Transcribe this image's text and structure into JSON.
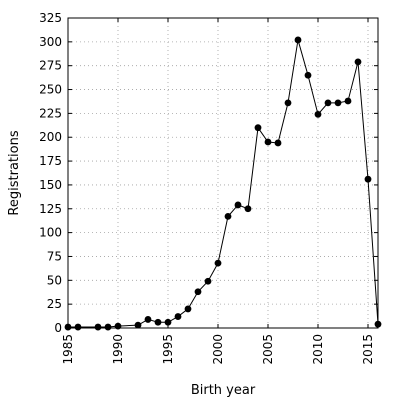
{
  "chart_data": {
    "type": "line",
    "title": "",
    "xlabel": "Birth year",
    "ylabel": "Registrations",
    "xlim": [
      1985,
      2016
    ],
    "ylim": [
      0,
      325
    ],
    "xticks": [
      1985,
      1990,
      1995,
      2000,
      2005,
      2010,
      2015
    ],
    "yticks": [
      0,
      25,
      50,
      75,
      100,
      125,
      150,
      175,
      200,
      225,
      250,
      275,
      300,
      325
    ],
    "grid": true,
    "series": [
      {
        "x": [
          1985,
          1986,
          1988,
          1989,
          1990,
          1992,
          1993,
          1994,
          1995,
          1996,
          1997,
          1998,
          1999,
          2000,
          2001,
          2002,
          2003,
          2004,
          2005,
          2006,
          2007,
          2008,
          2009,
          2010,
          2011,
          2012,
          2013,
          2014,
          2015,
          2016
        ],
        "y": [
          1,
          1,
          1,
          1,
          2,
          3,
          9,
          6,
          6,
          12,
          20,
          38,
          49,
          68,
          117,
          129,
          125,
          210,
          195,
          194,
          236,
          302,
          265,
          224,
          236,
          236,
          238,
          279,
          156,
          4
        ]
      }
    ]
  }
}
